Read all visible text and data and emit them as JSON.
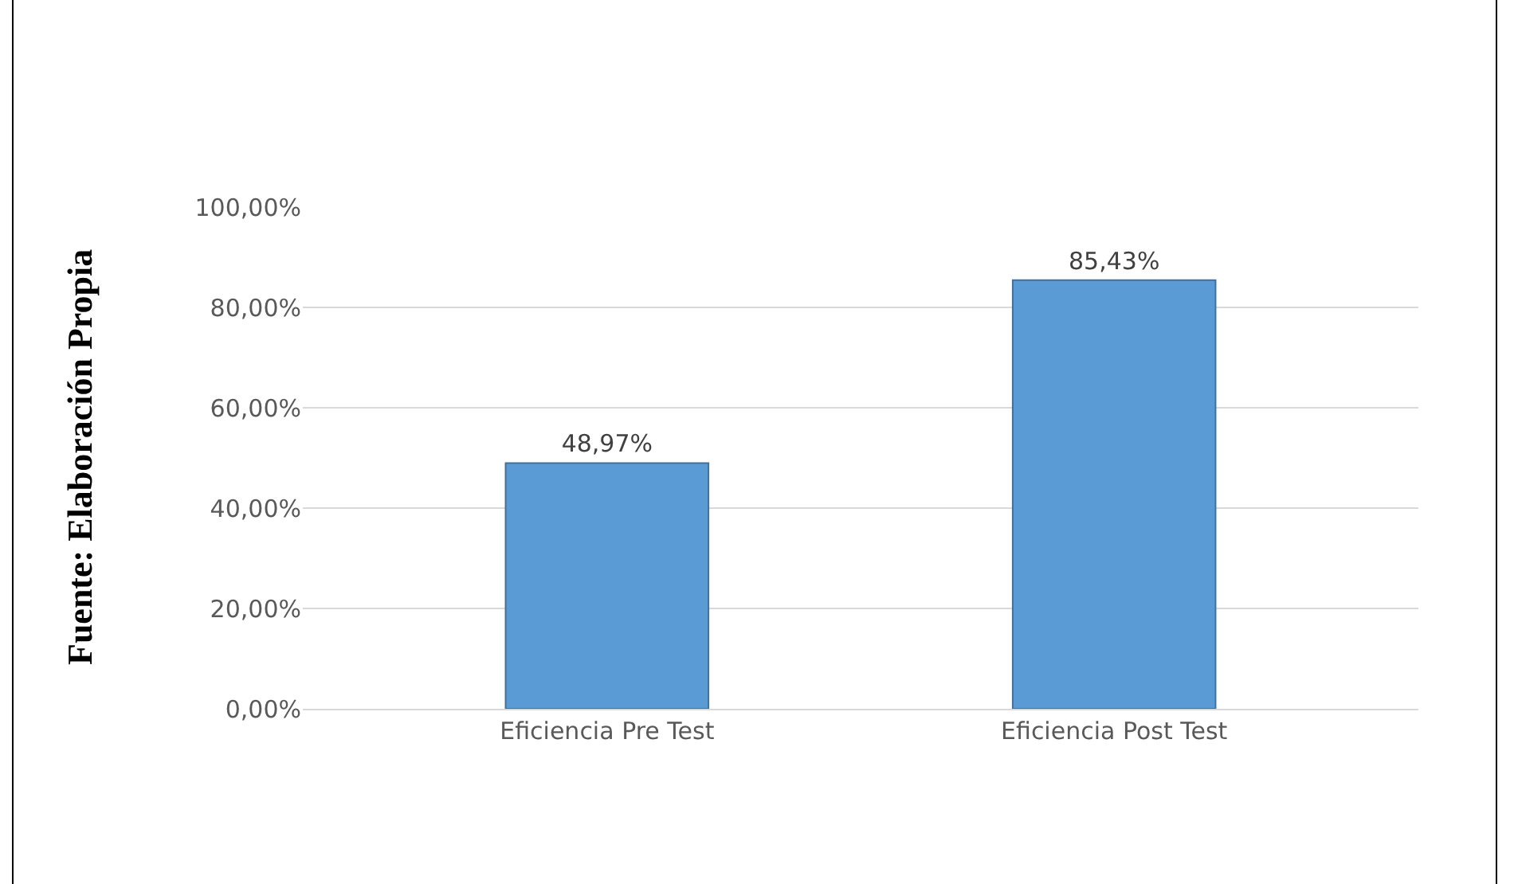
{
  "chart_data": {
    "type": "bar",
    "categories": [
      "Eficiencia Pre Test",
      "Eficiencia Post Test"
    ],
    "values": [
      48.97,
      85.43
    ],
    "value_labels": [
      "48,97%",
      "85,43%"
    ],
    "color": "#5b9bd5",
    "ylim": [
      0,
      100
    ],
    "yticks": [
      {
        "value": 0,
        "label": "0,00%"
      },
      {
        "value": 20,
        "label": "20,00%"
      },
      {
        "value": 40,
        "label": "40,00%"
      },
      {
        "value": 60,
        "label": "60,00%"
      },
      {
        "value": 80,
        "label": "80,00%"
      },
      {
        "value": 100,
        "label": "100,00%"
      }
    ],
    "grid": "y",
    "annotations": [
      "Fuente: Elaboración Propia"
    ]
  }
}
